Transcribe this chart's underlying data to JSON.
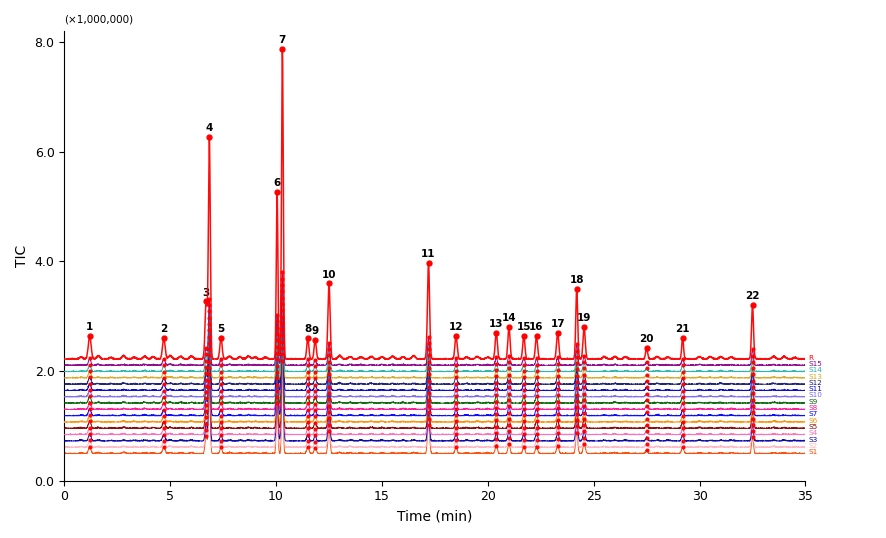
{
  "xlabel": "Time (min)",
  "ylabel": "TIC",
  "y_label_multiplier": "(×1,000,000)",
  "xlim": [
    0,
    35
  ],
  "ylim": [
    0,
    8.2
  ],
  "yticks": [
    0.0,
    2.0,
    4.0,
    6.0,
    8.0
  ],
  "xticks": [
    0,
    5,
    10,
    15,
    20,
    25,
    30,
    35
  ],
  "peak_labels": [
    1,
    2,
    3,
    4,
    5,
    6,
    7,
    8,
    9,
    10,
    11,
    12,
    13,
    14,
    15,
    16,
    17,
    18,
    19,
    20,
    21,
    22
  ],
  "peak_times": [
    1.2,
    4.7,
    6.7,
    6.85,
    7.4,
    10.05,
    10.3,
    11.5,
    11.85,
    12.5,
    17.2,
    18.5,
    20.4,
    21.0,
    21.7,
    22.3,
    23.3,
    24.2,
    24.55,
    27.5,
    29.2,
    32.5
  ],
  "peak_heights_ref": [
    0.42,
    0.38,
    1.05,
    4.05,
    0.38,
    3.05,
    5.65,
    0.38,
    0.35,
    1.38,
    1.75,
    0.42,
    0.48,
    0.58,
    0.42,
    0.42,
    0.48,
    1.28,
    0.58,
    0.2,
    0.38,
    0.98
  ],
  "peak_widths": [
    0.06,
    0.06,
    0.05,
    0.04,
    0.05,
    0.04,
    0.04,
    0.05,
    0.05,
    0.05,
    0.05,
    0.05,
    0.05,
    0.05,
    0.05,
    0.05,
    0.05,
    0.045,
    0.05,
    0.05,
    0.05,
    0.045
  ],
  "ref_baseline": 2.22,
  "stack_step": 0.115,
  "n_stacks": 16,
  "stack_colors": [
    "#FF0000",
    "#8B008B",
    "#20B2AA",
    "#DAA520",
    "#191970",
    "#0000CD",
    "#7B68EE",
    "#006400",
    "#FF1493",
    "#0000FF",
    "#FF8C00",
    "#8B0000",
    "#FF69B4",
    "#0000AA",
    "#FFB6C1",
    "#FF4500"
  ],
  "stack_labels": [
    "R",
    "S15",
    "S14",
    "S13",
    "S12",
    "S11",
    "S10",
    "S9",
    "S8",
    "S7",
    "S6",
    "S5",
    "S4",
    "S3",
    "S2",
    "S1"
  ],
  "minor_peaks": [
    [
      0.8,
      1.6,
      2.2,
      2.8,
      3.3,
      3.8,
      4.2,
      5.0,
      5.5,
      6.0,
      7.8,
      8.3,
      8.7,
      9.0,
      9.5,
      13.0,
      13.5,
      14.0,
      14.5,
      15.0,
      15.5,
      16.0,
      16.5,
      19.0,
      19.5,
      20.0,
      25.5,
      26.0,
      26.5,
      28.0,
      28.5,
      30.0,
      30.5,
      31.0,
      31.5,
      33.5,
      34.0,
      34.5
    ],
    [
      0.04,
      0.05,
      0.03,
      0.06,
      0.04,
      0.05,
      0.04,
      0.06,
      0.04,
      0.05,
      0.05,
      0.04,
      0.05,
      0.04,
      0.03,
      0.06,
      0.05,
      0.04,
      0.05,
      0.04,
      0.05,
      0.04,
      0.05,
      0.04,
      0.05,
      0.04,
      0.04,
      0.05,
      0.04,
      0.05,
      0.04,
      0.05,
      0.04,
      0.05,
      0.04,
      0.05,
      0.04,
      0.03
    ]
  ]
}
